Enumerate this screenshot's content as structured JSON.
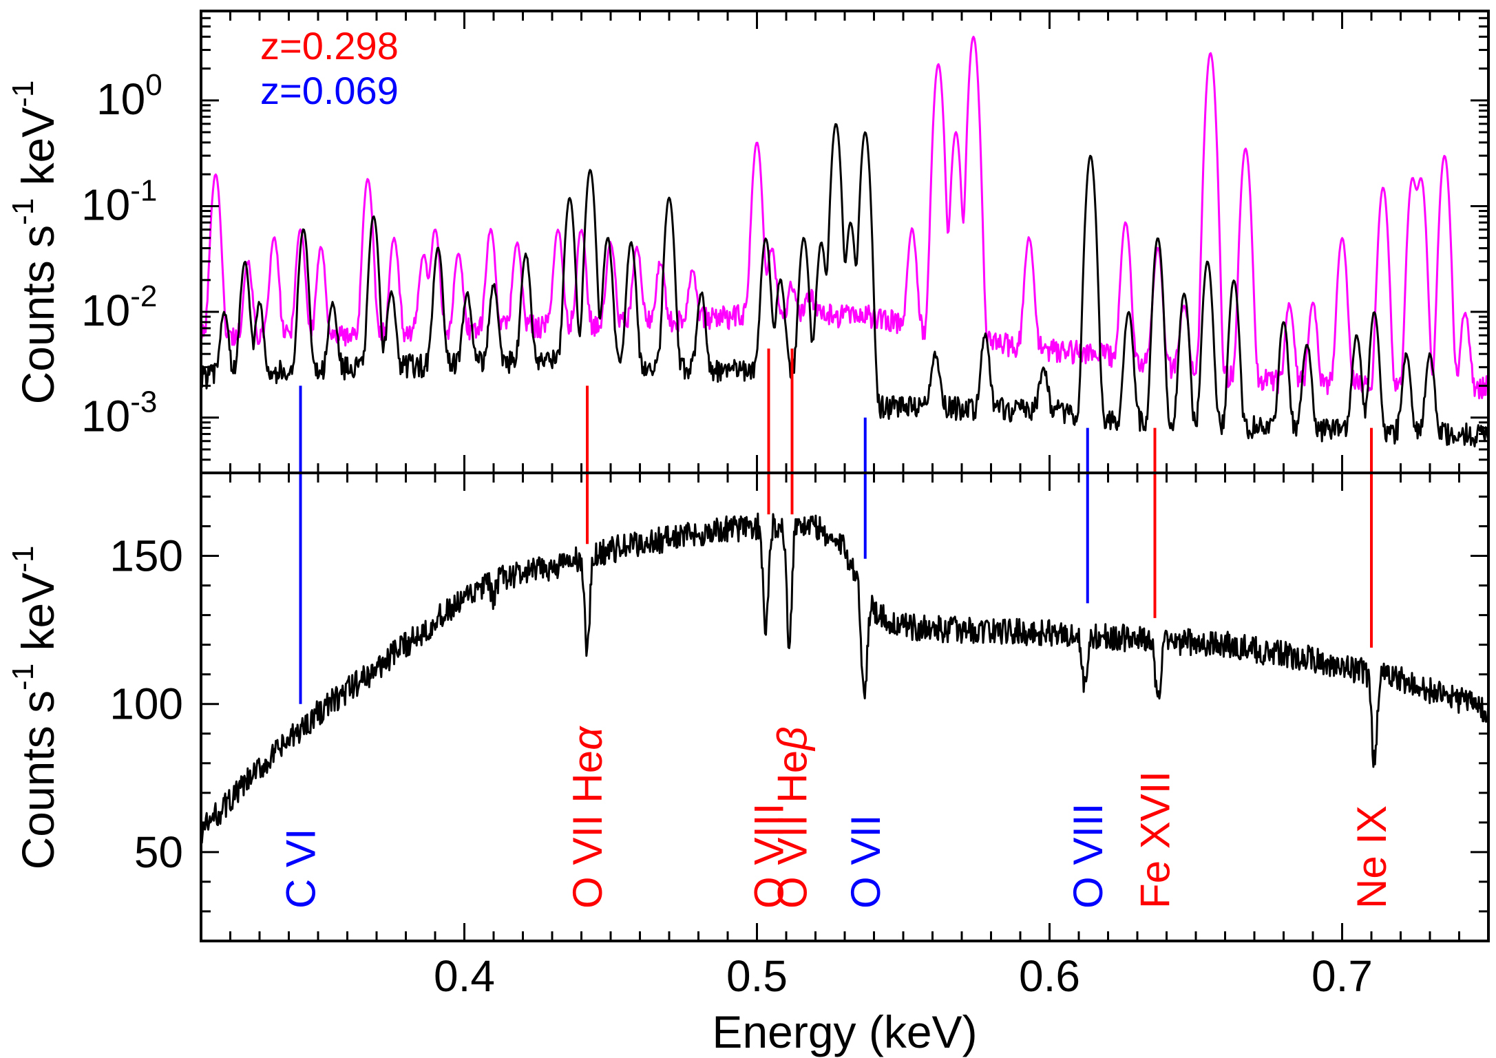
{
  "chart_data": {
    "type": "line",
    "x_axis": {
      "label": "Energy (keV)",
      "range": [
        0.31,
        0.75
      ],
      "ticks": [
        0.4,
        0.5,
        0.6,
        0.7
      ],
      "tick_labels": [
        "0.4",
        "0.5",
        "0.6",
        "0.7"
      ],
      "minor_step": 0.01
    },
    "z_legend": [
      {
        "text": "z=0.298",
        "color": "#ff0000"
      },
      {
        "text": "z=0.069",
        "color": "#0000ff"
      }
    ],
    "top_panel": {
      "ylabel": "Counts s-1 keV-1",
      "ylabel_parts": {
        "main": "Counts s",
        "exp1": "-1",
        "mid": " keV",
        "exp2": "-1"
      },
      "scale": "log",
      "ylim": [
        0.0003,
        7.0
      ],
      "ticks": [
        {
          "value": 0.001,
          "base": "10",
          "exp": "-3"
        },
        {
          "value": 0.01,
          "base": "10",
          "exp": "-2"
        },
        {
          "value": 0.1,
          "base": "10",
          "exp": "-1"
        },
        {
          "value": 1,
          "base": "10",
          "exp": "0"
        }
      ],
      "series": [
        {
          "color": "#ff00ff",
          "baseline": [
            [
              0.31,
              0.006
            ],
            [
              0.36,
              0.006
            ],
            [
              0.42,
              0.0075
            ],
            [
              0.46,
              0.008
            ],
            [
              0.5,
              0.0095
            ],
            [
              0.535,
              0.0095
            ],
            [
              0.545,
              0.0085
            ],
            [
              0.555,
              0.007
            ],
            [
              0.575,
              0.0055
            ],
            [
              0.6,
              0.0045
            ],
            [
              0.62,
              0.004
            ],
            [
              0.63,
              0.0035
            ],
            [
              0.65,
              0.0028
            ],
            [
              0.68,
              0.0022
            ],
            [
              0.75,
              0.002
            ]
          ],
          "peaks": [
            [
              0.315,
              0.2
            ],
            [
              0.326,
              0.03
            ],
            [
              0.335,
              0.05
            ],
            [
              0.344,
              0.06
            ],
            [
              0.351,
              0.04
            ],
            [
              0.367,
              0.18
            ],
            [
              0.376,
              0.05
            ],
            [
              0.386,
              0.035
            ],
            [
              0.39,
              0.06
            ],
            [
              0.398,
              0.035
            ],
            [
              0.409,
              0.06
            ],
            [
              0.418,
              0.045
            ],
            [
              0.432,
              0.06
            ],
            [
              0.44,
              0.06
            ],
            [
              0.45,
              0.045
            ],
            [
              0.459,
              0.04
            ],
            [
              0.467,
              0.03
            ],
            [
              0.478,
              0.025
            ],
            [
              0.5,
              0.4
            ],
            [
              0.505,
              0.04
            ],
            [
              0.512,
              0.018
            ],
            [
              0.518,
              0.015
            ],
            [
              0.553,
              0.06
            ],
            [
              0.562,
              2.2
            ],
            [
              0.568,
              0.5
            ],
            [
              0.574,
              4.0
            ],
            [
              0.593,
              0.05
            ],
            [
              0.626,
              0.07
            ],
            [
              0.637,
              0.04
            ],
            [
              0.646,
              0.012
            ],
            [
              0.655,
              2.8
            ],
            [
              0.667,
              0.35
            ],
            [
              0.682,
              0.012
            ],
            [
              0.69,
              0.012
            ],
            [
              0.7,
              0.05
            ],
            [
              0.714,
              0.15
            ],
            [
              0.724,
              0.18
            ],
            [
              0.727,
              0.18
            ],
            [
              0.735,
              0.3
            ],
            [
              0.742,
              0.01
            ]
          ]
        },
        {
          "color": "#000000",
          "baseline": [
            [
              0.31,
              0.0025
            ],
            [
              0.36,
              0.003
            ],
            [
              0.42,
              0.0035
            ],
            [
              0.45,
              0.0035
            ],
            [
              0.47,
              0.003
            ],
            [
              0.5,
              0.0028
            ],
            [
              0.53,
              0.0026
            ],
            [
              0.54,
              0.0013
            ],
            [
              0.6,
              0.0012
            ],
            [
              0.62,
              0.001
            ],
            [
              0.68,
              0.0008
            ],
            [
              0.75,
              0.0007
            ]
          ],
          "peaks": [
            [
              0.318,
              0.01
            ],
            [
              0.325,
              0.03
            ],
            [
              0.33,
              0.012
            ],
            [
              0.345,
              0.06
            ],
            [
              0.355,
              0.012
            ],
            [
              0.369,
              0.08
            ],
            [
              0.375,
              0.015
            ],
            [
              0.391,
              0.04
            ],
            [
              0.401,
              0.015
            ],
            [
              0.41,
              0.018
            ],
            [
              0.421,
              0.035
            ],
            [
              0.436,
              0.12
            ],
            [
              0.443,
              0.22
            ],
            [
              0.449,
              0.05
            ],
            [
              0.457,
              0.045
            ],
            [
              0.47,
              0.12
            ],
            [
              0.481,
              0.015
            ],
            [
              0.503,
              0.05
            ],
            [
              0.508,
              0.02
            ],
            [
              0.516,
              0.05
            ],
            [
              0.522,
              0.045
            ],
            [
              0.527,
              0.6
            ],
            [
              0.532,
              0.07
            ],
            [
              0.537,
              0.5
            ],
            [
              0.561,
              0.004
            ],
            [
              0.578,
              0.006
            ],
            [
              0.598,
              0.003
            ],
            [
              0.614,
              0.3
            ],
            [
              0.627,
              0.01
            ],
            [
              0.637,
              0.05
            ],
            [
              0.646,
              0.015
            ],
            [
              0.654,
              0.03
            ],
            [
              0.663,
              0.02
            ],
            [
              0.68,
              0.008
            ],
            [
              0.688,
              0.005
            ],
            [
              0.705,
              0.006
            ],
            [
              0.711,
              0.01
            ],
            [
              0.722,
              0.004
            ],
            [
              0.73,
              0.004
            ]
          ]
        }
      ]
    },
    "bottom_panel": {
      "ylabel": "Counts s-1 keV-1",
      "ylabel_parts": {
        "main": "Counts s",
        "exp1": "-1",
        "mid": " keV",
        "exp2": "-1"
      },
      "scale": "linear",
      "ylim": [
        20,
        178
      ],
      "ticks": [
        50,
        100,
        150
      ],
      "tick_labels": [
        "50",
        "100",
        "150"
      ],
      "series": [
        {
          "color": "#000000",
          "continuum": [
            [
              0.31,
              57
            ],
            [
              0.33,
              78
            ],
            [
              0.35,
              97
            ],
            [
              0.37,
              112
            ],
            [
              0.39,
              128
            ],
            [
              0.41,
              142
            ],
            [
              0.43,
              146
            ],
            [
              0.45,
              152
            ],
            [
              0.47,
              156
            ],
            [
              0.49,
              159
            ],
            [
              0.51,
              161
            ],
            [
              0.52,
              160
            ],
            [
              0.53,
              152
            ],
            [
              0.535,
              142
            ],
            [
              0.54,
              132
            ],
            [
              0.545,
              128
            ],
            [
              0.55,
              126
            ],
            [
              0.57,
              125
            ],
            [
              0.6,
              124
            ],
            [
              0.63,
              122
            ],
            [
              0.66,
              120
            ],
            [
              0.69,
              115
            ],
            [
              0.72,
              108
            ],
            [
              0.75,
              98
            ]
          ],
          "absorption": [
            [
              0.41,
              6
            ],
            [
              0.442,
              32
            ],
            [
              0.503,
              38
            ],
            [
              0.511,
              40
            ],
            [
              0.537,
              25
            ],
            [
              0.536,
              15
            ],
            [
              0.612,
              18
            ],
            [
              0.637,
              22
            ],
            [
              0.711,
              30
            ]
          ]
        }
      ]
    },
    "line_markers": [
      {
        "label": "C VI",
        "energy": 0.344,
        "color": "#0000ff",
        "top_y": 0.002,
        "bottom_y": 100
      },
      {
        "label": "O VII Heα",
        "energy": 0.442,
        "color": "#ff0000",
        "top_y": 0.002,
        "bottom_y": 154
      },
      {
        "label": "O VIII",
        "energy": 0.504,
        "color": "#ff0000",
        "top_y": 0.0045,
        "bottom_y": 164
      },
      {
        "label": "O VII Heβ",
        "energy": 0.512,
        "color": "#ff0000",
        "top_y": 0.0045,
        "bottom_y": 164
      },
      {
        "label": "O VII",
        "energy": 0.537,
        "color": "#0000ff",
        "top_y": 0.001,
        "bottom_y": 149
      },
      {
        "label": "O VIII",
        "energy": 0.613,
        "color": "#0000ff",
        "top_y": 0.0008,
        "bottom_y": 134
      },
      {
        "label": "Fe XVII",
        "energy": 0.636,
        "color": "#ff0000",
        "top_y": 0.0008,
        "bottom_y": 129
      },
      {
        "label": "Ne IX",
        "energy": 0.71,
        "color": "#ff0000",
        "top_y": 0.0008,
        "bottom_y": 119
      }
    ]
  }
}
